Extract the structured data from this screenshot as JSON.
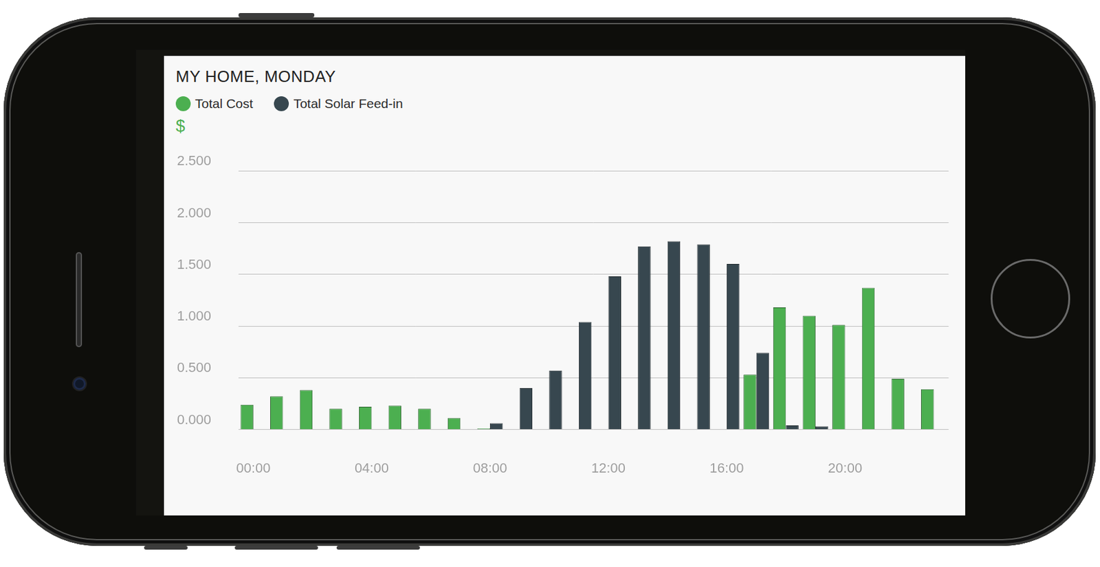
{
  "chart_data": {
    "type": "bar",
    "title": "MY HOME, MONDAY",
    "y_label": "$",
    "categories": [
      "00:00",
      null,
      null,
      null,
      "04:00",
      null,
      null,
      null,
      "08:00",
      null,
      null,
      null,
      "12:00",
      null,
      null,
      null,
      "16:00",
      null,
      null,
      null,
      "20:00",
      null,
      null,
      null
    ],
    "series": [
      {
        "name": "Total Cost",
        "color": "#4caf50",
        "values": [
          0.24,
          0.32,
          0.38,
          0.2,
          0.22,
          0.23,
          0.2,
          0.11,
          0.01,
          null,
          null,
          null,
          null,
          null,
          null,
          null,
          null,
          0.53,
          1.18,
          1.1,
          1.01,
          1.37,
          0.49,
          0.39
        ]
      },
      {
        "name": "Total Solar Feed-in",
        "color": "#37474f",
        "values": [
          null,
          null,
          null,
          null,
          null,
          null,
          null,
          null,
          0.06,
          0.4,
          0.57,
          1.04,
          1.48,
          1.77,
          1.82,
          1.79,
          1.6,
          0.74,
          0.04,
          0.03,
          null,
          null,
          null,
          null
        ]
      }
    ],
    "ylim": [
      0,
      2.5
    ],
    "yticks": [
      {
        "value": 0,
        "label": "0.000"
      },
      {
        "value": 0.5,
        "label": "0.500"
      },
      {
        "value": 1,
        "label": "1.000"
      },
      {
        "value": 1.5,
        "label": "1.500"
      },
      {
        "value": 2,
        "label": "2.000"
      },
      {
        "value": 2.5,
        "label": "2.500"
      }
    ],
    "grid": true,
    "legend": "top-left"
  }
}
